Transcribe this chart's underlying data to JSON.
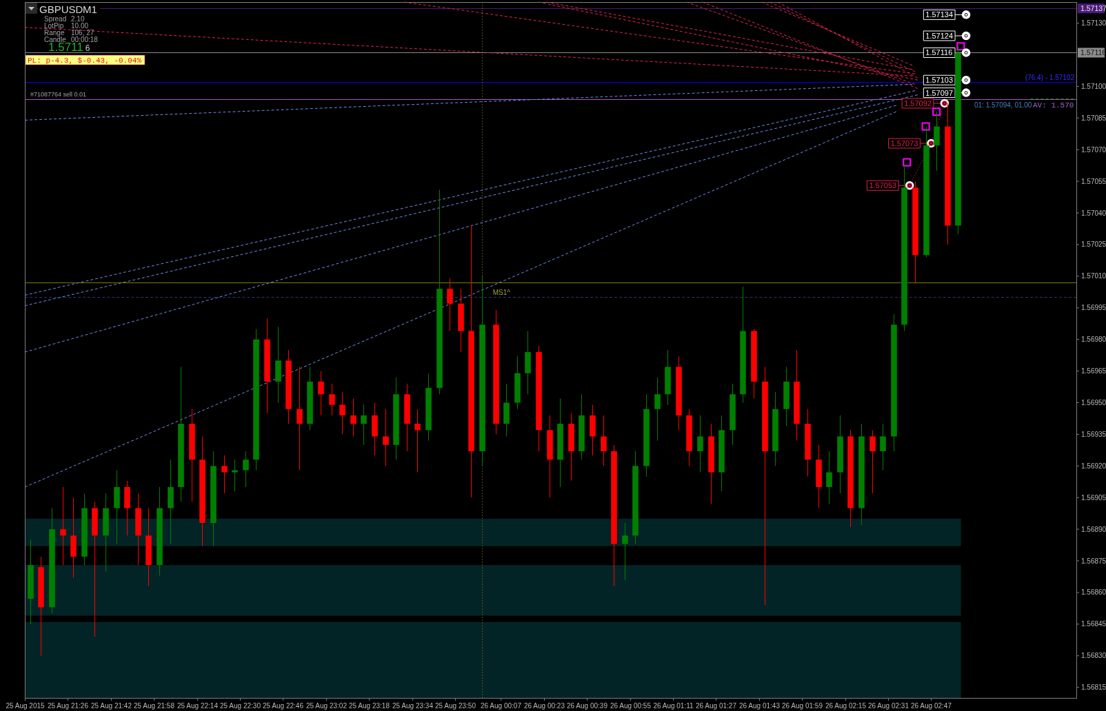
{
  "chart_data": {
    "type": "candlestick",
    "title": "GBPUSD",
    "subtitle": "M1",
    "x": [
      "2015-08-25T21:12",
      "2015-08-25T21:16",
      "2015-08-25T21:20",
      "2015-08-25T21:24",
      "2015-08-25T21:28",
      "2015-08-25T21:32",
      "2015-08-25T21:36",
      "2015-08-25T21:40",
      "2015-08-25T21:44",
      "2015-08-25T21:48",
      "2015-08-25T21:52",
      "2015-08-25T21:56",
      "2015-08-25T22:00",
      "2015-08-25T22:04",
      "2015-08-25T22:08",
      "2015-08-25T22:12",
      "2015-08-25T22:16",
      "2015-08-25T22:20",
      "2015-08-25T22:24",
      "2015-08-25T22:28",
      "2015-08-25T22:32",
      "2015-08-25T22:36",
      "2015-08-25T22:40",
      "2015-08-25T22:44",
      "2015-08-25T22:48",
      "2015-08-25T22:52",
      "2015-08-25T22:56",
      "2015-08-25T23:00",
      "2015-08-25T23:04",
      "2015-08-25T23:08",
      "2015-08-25T23:12",
      "2015-08-25T23:16",
      "2015-08-25T23:20",
      "2015-08-25T23:24",
      "2015-08-25T23:28",
      "2015-08-25T23:32",
      "2015-08-25T23:36",
      "2015-08-25T23:40",
      "2015-08-25T23:44",
      "2015-08-25T23:48",
      "2015-08-25T23:52",
      "2015-08-25T23:56",
      "2015-08-26T00:00",
      "2015-08-26T00:05",
      "2015-08-26T00:09",
      "2015-08-26T00:13",
      "2015-08-26T00:17",
      "2015-08-26T00:21",
      "2015-08-26T00:25",
      "2015-08-26T00:29",
      "2015-08-26T00:33",
      "2015-08-26T00:37",
      "2015-08-26T00:41",
      "2015-08-26T00:45",
      "2015-08-26T00:49",
      "2015-08-26T00:53",
      "2015-08-26T00:57",
      "2015-08-26T01:01",
      "2015-08-26T01:05",
      "2015-08-26T01:09",
      "2015-08-26T01:13",
      "2015-08-26T01:17",
      "2015-08-26T01:21",
      "2015-08-26T01:25",
      "2015-08-26T01:29",
      "2015-08-26T01:33",
      "2015-08-26T01:37",
      "2015-08-26T01:41",
      "2015-08-26T01:45",
      "2015-08-26T01:49",
      "2015-08-26T01:53",
      "2015-08-26T01:57",
      "2015-08-26T02:01",
      "2015-08-26T02:05",
      "2015-08-26T02:09",
      "2015-08-26T02:13",
      "2015-08-26T02:17",
      "2015-08-26T02:21",
      "2015-08-26T02:25",
      "2015-08-26T02:29",
      "2015-08-26T02:33",
      "2015-08-26T02:37",
      "2015-08-26T02:41",
      "2015-08-26T02:45",
      "2015-08-26T02:49",
      "2015-08-26T02:53",
      "2015-08-26T02:57"
    ],
    "ohlc": [
      [
        1.56857,
        1.56885,
        1.56845,
        1.56873
      ],
      [
        1.56872,
        1.56877,
        1.5683,
        1.56853
      ],
      [
        1.56853,
        1.569,
        1.5685,
        1.5689
      ],
      [
        1.5689,
        1.5691,
        1.56873,
        1.56887
      ],
      [
        1.56887,
        1.56905,
        1.56867,
        1.56877
      ],
      [
        1.56877,
        1.56907,
        1.56873,
        1.569
      ],
      [
        1.569,
        1.56903,
        1.56839,
        1.56887
      ],
      [
        1.56887,
        1.56907,
        1.5687,
        1.569
      ],
      [
        1.569,
        1.56918,
        1.56883,
        1.5691
      ],
      [
        1.5691,
        1.56913,
        1.56887,
        1.569
      ],
      [
        1.569,
        1.56907,
        1.56873,
        1.56887
      ],
      [
        1.56887,
        1.569,
        1.56863,
        1.56873
      ],
      [
        1.56873,
        1.5691,
        1.56868,
        1.569
      ],
      [
        1.569,
        1.56923,
        1.56883,
        1.5691
      ],
      [
        1.5691,
        1.56967,
        1.56903,
        1.5694
      ],
      [
        1.5694,
        1.56947,
        1.56903,
        1.56923
      ],
      [
        1.56923,
        1.56934,
        1.56882,
        1.56893
      ],
      [
        1.56893,
        1.56927,
        1.56882,
        1.5692
      ],
      [
        1.5692,
        1.56925,
        1.56907,
        1.56917
      ],
      [
        1.56917,
        1.56923,
        1.56908,
        1.56918
      ],
      [
        1.56918,
        1.56927,
        1.5691,
        1.56923
      ],
      [
        1.56923,
        1.56985,
        1.56918,
        1.5698
      ],
      [
        1.5698,
        1.5699,
        1.56945,
        1.5696
      ],
      [
        1.5696,
        1.56986,
        1.5695,
        1.5697
      ],
      [
        1.5697,
        1.56975,
        1.5694,
        1.56947
      ],
      [
        1.56947,
        1.56967,
        1.56918,
        1.5694
      ],
      [
        1.5694,
        1.56967,
        1.56937,
        1.5696
      ],
      [
        1.5696,
        1.56965,
        1.56944,
        1.56954
      ],
      [
        1.56954,
        1.56959,
        1.56944,
        1.56949
      ],
      [
        1.56949,
        1.56955,
        1.56935,
        1.56944
      ],
      [
        1.56944,
        1.56952,
        1.56934,
        1.5694
      ],
      [
        1.5694,
        1.56949,
        1.5693,
        1.56944
      ],
      [
        1.56944,
        1.5695,
        1.56925,
        1.56934
      ],
      [
        1.56934,
        1.56947,
        1.5692,
        1.5693
      ],
      [
        1.5693,
        1.56962,
        1.56923,
        1.56954
      ],
      [
        1.56954,
        1.56959,
        1.56927,
        1.5694
      ],
      [
        1.5694,
        1.56947,
        1.56917,
        1.56937
      ],
      [
        1.56937,
        1.56964,
        1.56932,
        1.56957
      ],
      [
        1.56957,
        1.57051,
        1.56954,
        1.57004
      ],
      [
        1.57004,
        1.57009,
        1.56984,
        1.56997
      ],
      [
        1.56997,
        1.57004,
        1.56974,
        1.56984
      ],
      [
        1.56984,
        1.57034,
        1.56905,
        1.56927
      ],
      [
        1.56927,
        1.5701,
        1.5692,
        1.56987
      ],
      [
        1.56987,
        1.56994,
        1.56935,
        1.5694
      ],
      [
        1.5694,
        1.56959,
        1.56934,
        1.5695
      ],
      [
        1.5695,
        1.56972,
        1.56947,
        1.56964
      ],
      [
        1.56964,
        1.56984,
        1.56954,
        1.56974
      ],
      [
        1.56974,
        1.56977,
        1.56927,
        1.56937
      ],
      [
        1.56937,
        1.56944,
        1.56905,
        1.56923
      ],
      [
        1.56923,
        1.56952,
        1.5691,
        1.5694
      ],
      [
        1.5694,
        1.56945,
        1.56913,
        1.56927
      ],
      [
        1.56927,
        1.56954,
        1.56923,
        1.56944
      ],
      [
        1.56944,
        1.56949,
        1.56925,
        1.56934
      ],
      [
        1.56934,
        1.56944,
        1.5692,
        1.56927
      ],
      [
        1.56927,
        1.5693,
        1.56863,
        1.56883
      ],
      [
        1.56883,
        1.56893,
        1.56866,
        1.56887
      ],
      [
        1.56887,
        1.56927,
        1.56883,
        1.5692
      ],
      [
        1.5692,
        1.56954,
        1.56915,
        1.56947
      ],
      [
        1.56947,
        1.56962,
        1.56932,
        1.56954
      ],
      [
        1.56954,
        1.56975,
        1.56949,
        1.56967
      ],
      [
        1.56967,
        1.56972,
        1.56937,
        1.56944
      ],
      [
        1.56944,
        1.56947,
        1.5692,
        1.56927
      ],
      [
        1.56927,
        1.56944,
        1.56917,
        1.56934
      ],
      [
        1.56934,
        1.5694,
        1.56902,
        1.56917
      ],
      [
        1.56917,
        1.56944,
        1.56908,
        1.56937
      ],
      [
        1.56937,
        1.56959,
        1.5693,
        1.56954
      ],
      [
        1.56954,
        1.57005,
        1.5695,
        1.56984
      ],
      [
        1.56984,
        1.56985,
        1.56952,
        1.5696
      ],
      [
        1.5696,
        1.56967,
        1.56854,
        1.56927
      ],
      [
        1.56927,
        1.56955,
        1.5692,
        1.56947
      ],
      [
        1.56947,
        1.56967,
        1.56939,
        1.5696
      ],
      [
        1.5696,
        1.56975,
        1.56932,
        1.5694
      ],
      [
        1.5694,
        1.56947,
        1.56915,
        1.56923
      ],
      [
        1.56923,
        1.5693,
        1.569,
        1.5691
      ],
      [
        1.5691,
        1.56927,
        1.56902,
        1.56917
      ],
      [
        1.56917,
        1.56944,
        1.56907,
        1.56934
      ],
      [
        1.56934,
        1.56937,
        1.56891,
        1.569
      ],
      [
        1.569,
        1.5694,
        1.56892,
        1.56934
      ],
      [
        1.56934,
        1.56937,
        1.56907,
        1.56927
      ],
      [
        1.56927,
        1.5694,
        1.56918,
        1.56934
      ],
      [
        1.56934,
        1.56992,
        1.56927,
        1.56987
      ],
      [
        1.56987,
        1.57063,
        1.56984,
        1.57052
      ],
      [
        1.57052,
        1.57055,
        1.57007,
        1.5702
      ],
      [
        1.5702,
        1.57081,
        1.57019,
        1.57072
      ],
      [
        1.57072,
        1.57088,
        1.5706,
        1.57081
      ],
      [
        1.57081,
        1.57092,
        1.57025,
        1.57034
      ],
      [
        1.57034,
        1.57119,
        1.5703,
        1.57116
      ]
    ],
    "colors": [
      "#008000",
      "#ff0000",
      "#008000",
      "#ff0000",
      "#ff0000",
      "#008000",
      "#ff0000",
      "#008000",
      "#008000",
      "#ff0000",
      "#ff0000",
      "#ff0000",
      "#008000",
      "#008000",
      "#008000",
      "#ff0000",
      "#ff0000",
      "#008000",
      "#ff0000",
      "#008000",
      "#008000",
      "#008000",
      "#ff0000",
      "#008000",
      "#ff0000",
      "#ff0000",
      "#008000",
      "#ff0000",
      "#ff0000",
      "#ff0000",
      "#ff0000",
      "#008000",
      "#ff0000",
      "#ff0000",
      "#008000",
      "#ff0000",
      "#ff0000",
      "#008000",
      "#008000",
      "#ff0000",
      "#ff0000",
      "#ff0000",
      "#008000",
      "#ff0000",
      "#008000",
      "#008000",
      "#008000",
      "#ff0000",
      "#ff0000",
      "#008000",
      "#ff0000",
      "#008000",
      "#ff0000",
      "#ff0000",
      "#ff0000",
      "#008000",
      "#008000",
      "#008000",
      "#008000",
      "#008000",
      "#ff0000",
      "#ff0000",
      "#008000",
      "#ff0000",
      "#008000",
      "#008000",
      "#008000",
      "#ff0000",
      "#ff0000",
      "#008000",
      "#008000",
      "#ff0000",
      "#ff0000",
      "#ff0000",
      "#008000",
      "#008000",
      "#ff0000",
      "#008000",
      "#ff0000",
      "#008000",
      "#008000",
      "#008000",
      "#ff0000",
      "#008000",
      "#008000",
      "#ff0000",
      "#008000"
    ],
    "xlim": [
      "2015-08-25T21:10",
      "2015-08-26T03:41"
    ],
    "ylim": [
      1.5681,
      1.5714
    ],
    "xticks": [
      {
        "value": "2015-08-25T21:10",
        "label": "25 Aug 2015"
      },
      {
        "value": "2015-08-25T21:26",
        "label": "25 Aug 21:26"
      },
      {
        "value": "2015-08-25T21:42",
        "label": "25 Aug 21:42"
      },
      {
        "value": "2015-08-25T21:58",
        "label": "25 Aug 21:58"
      },
      {
        "value": "2015-08-25T22:14",
        "label": "25 Aug 22:14"
      },
      {
        "value": "2015-08-25T22:30",
        "label": "25 Aug 22:30"
      },
      {
        "value": "2015-08-25T22:46",
        "label": "25 Aug 22:46"
      },
      {
        "value": "2015-08-25T23:02",
        "label": "25 Aug 23:02"
      },
      {
        "value": "2015-08-25T23:18",
        "label": "25 Aug 23:18"
      },
      {
        "value": "2015-08-25T23:34",
        "label": "25 Aug 23:34"
      },
      {
        "value": "2015-08-25T23:50",
        "label": "25 Aug 23:50"
      },
      {
        "value": "2015-08-26T00:07",
        "label": "26 Aug 00:07"
      },
      {
        "value": "2015-08-26T00:23",
        "label": "26 Aug 00:23"
      },
      {
        "value": "2015-08-26T00:39",
        "label": "26 Aug 00:39"
      },
      {
        "value": "2015-08-26T00:55",
        "label": "26 Aug 00:55"
      },
      {
        "value": "2015-08-26T01:11",
        "label": "26 Aug 01:11"
      },
      {
        "value": "2015-08-26T01:27",
        "label": "26 Aug 01:27"
      },
      {
        "value": "2015-08-26T01:43",
        "label": "26 Aug 01:43"
      },
      {
        "value": "2015-08-26T01:59",
        "label": "26 Aug 01:59"
      },
      {
        "value": "2015-08-26T02:15",
        "label": "26 Aug 02:15"
      },
      {
        "value": "2015-08-26T02:31",
        "label": "26 Aug 02:31"
      },
      {
        "value": "2015-08-26T02:47",
        "label": "26 Aug 02:47"
      }
    ],
    "yticks": [
      1.56815,
      {
        "value": 1.5683,
        "label": "1.56830"
      },
      1.56845,
      {
        "value": 1.5686,
        "label": "1.56860"
      },
      1.56875,
      {
        "value": 1.5689,
        "label": "1.56890"
      },
      1.56905,
      {
        "value": 1.5692,
        "label": "1.56920"
      },
      1.56935,
      {
        "value": 1.5695,
        "label": "1.56950"
      },
      1.56965,
      {
        "value": 1.5698,
        "label": "1.56980"
      },
      1.56995,
      {
        "value": 1.5701,
        "label": "1.57010"
      },
      1.57025,
      {
        "value": 1.5704,
        "label": "1.57040"
      },
      1.57055,
      {
        "value": 1.5707,
        "label": "1.57070"
      },
      1.57085,
      {
        "value": 1.571,
        "label": "1.57100"
      },
      {
        "value": 1.5713,
        "label": "1.57130"
      }
    ],
    "series": [
      {
        "type": "line",
        "x": [
          "2015-08-25T21:10",
          "2015-08-26T02:40"
        ],
        "values": [
          1.57128,
          1.57105
        ],
        "color": "#e8254f",
        "line_style": "dashed"
      },
      {
        "type": "line",
        "x": [
          "2015-08-25T23:31",
          "2015-08-26T02:41"
        ],
        "values": [
          1.5714,
          1.57106
        ],
        "color": "#e8254f",
        "line_style": "dashed"
      },
      {
        "type": "line",
        "x": [
          "2015-08-26T00:21",
          "2015-08-26T02:42"
        ],
        "values": [
          1.5714,
          1.57103
        ],
        "color": "#e8254f",
        "line_style": "dashed"
      },
      {
        "type": "line",
        "x": [
          "2015-08-26T00:24",
          "2015-08-26T02:40"
        ],
        "values": [
          1.5714,
          1.57108
        ],
        "color": "#e8254f",
        "line_style": "dashed"
      },
      {
        "type": "line",
        "x": [
          "2015-08-26T01:16",
          "2015-08-26T02:41"
        ],
        "values": [
          1.5714,
          1.57101
        ],
        "color": "#e8254f",
        "line_style": "dashed"
      },
      {
        "type": "line",
        "x": [
          "2015-08-26T01:22",
          "2015-08-26T02:42"
        ],
        "values": [
          1.5714,
          1.57099
        ],
        "color": "#e8254f",
        "line_style": "dashed"
      },
      {
        "type": "line",
        "x": [
          "2015-08-26T01:44",
          "2015-08-26T02:40"
        ],
        "values": [
          1.5714,
          1.5711
        ],
        "color": "#e8254f",
        "line_style": "dashed"
      },
      {
        "type": "line",
        "x": [
          "2015-08-26T01:47",
          "2015-08-26T02:41"
        ],
        "values": [
          1.5714,
          1.57107
        ],
        "color": "#e8254f",
        "line_style": "dashed"
      },
      {
        "type": "line",
        "x": [
          "2015-08-26T01:50",
          "2015-08-26T02:42"
        ],
        "values": [
          1.5714,
          1.57104
        ],
        "color": "#e8254f",
        "line_style": "dashed"
      },
      {
        "type": "line",
        "x": [
          "2015-08-25T21:10",
          "2015-08-26T02:40"
        ],
        "values": [
          1.57084,
          1.57101
        ],
        "color": "#6a8fe8",
        "line_style": "dashed"
      },
      {
        "type": "line",
        "x": [
          "2015-08-25T21:10",
          "2015-08-26T02:41"
        ],
        "values": [
          1.57001,
          1.57098
        ],
        "color": "#6a8fe8",
        "line_style": "dashed"
      },
      {
        "type": "line",
        "x": [
          "2015-08-25T21:10",
          "2015-08-26T02:42"
        ],
        "values": [
          1.56996,
          1.57096
        ],
        "color": "#6a8fe8",
        "line_style": "dashed"
      },
      {
        "type": "line",
        "x": [
          "2015-08-25T21:10",
          "2015-08-26T02:34"
        ],
        "values": [
          1.56974,
          1.57091
        ],
        "color": "#6a8fe8",
        "line_style": "dashed"
      },
      {
        "type": "line",
        "x": [
          "2015-08-25T21:10",
          "2015-08-26T02:34"
        ],
        "values": [
          1.5691,
          1.57088
        ],
        "color": "#6a8fe8",
        "line_style": "dashed"
      },
      {
        "type": "line",
        "x": [
          "2015-08-26T02:39",
          "2015-08-26T02:47",
          "2015-08-26T02:52"
        ],
        "values": [
          1.57053,
          1.57073,
          1.57092
        ],
        "color": "#dc143c",
        "line_style": "dotted",
        "marker": "circle"
      },
      {
        "type": "line",
        "x": [
          "2015-08-26T03:24",
          "2015-08-26T03:40"
        ],
        "values": [
          1.57094,
          1.57094
        ],
        "color": "#00c000",
        "line_style": "dashed"
      },
      {
        "type": "scatter",
        "x": [
          "2015-08-26T02:38",
          "2015-08-26T02:45",
          "2015-08-26T02:49",
          "2015-08-26T02:58"
        ],
        "values": [
          1.57064,
          1.57081,
          1.57088,
          1.57119
        ],
        "color": "#ff00ff",
        "marker": "square"
      },
      {
        "type": "scatter",
        "x": [
          "2015-08-26T03:00",
          "2015-08-26T03:00",
          "2015-08-26T03:00",
          "2015-08-26T03:00",
          "2015-08-26T03:00"
        ],
        "values": [
          1.57134,
          1.57124,
          1.57116,
          1.57103,
          1.57097
        ],
        "color": "#ffffff",
        "marker": "circle"
      }
    ],
    "ref_lines": [
      {
        "axis": "y",
        "value": 1.57137,
        "label": "1.57137",
        "color": "#4b1a7a"
      },
      {
        "axis": "y",
        "value": 1.57116,
        "label": "1.57116",
        "color": "#8c8c8c"
      },
      {
        "axis": "y",
        "value": 1.57102,
        "color": "#0000ff"
      },
      {
        "axis": "y",
        "value": 1.57094,
        "color": "#b050c8"
      },
      {
        "axis": "y",
        "value": 1.57007,
        "color": "#7a7a10"
      },
      {
        "axis": "y",
        "value": 1.57,
        "color": "#303080",
        "line_style": "dashed"
      },
      {
        "axis": "x",
        "value": "2015-08-26T00:00",
        "color": "#6b6b10",
        "line_style": "dotted"
      }
    ],
    "bands": [
      {
        "axis": "y",
        "from": 1.5681,
        "to": 1.56846,
        "color": "#022426"
      },
      {
        "axis": "y",
        "from": 1.56849,
        "to": 1.56873,
        "color": "#022426"
      },
      {
        "axis": "y",
        "from": 1.56882,
        "to": 1.56895,
        "color": "#022426"
      }
    ],
    "annotations": [
      "Spread",
      "2.10",
      "LotPip",
      "10.00",
      "Range",
      "106, 27",
      "Candle",
      "00:00:18",
      "1.57116",
      "PL: p-4.3, $-0.43, -0.04%",
      "#71087764 sell 0.01",
      "(76.4) - 1.57102",
      "01: 1.57094, 01.00",
      "AV: 1.570",
      {
        "text": "MS1^",
        "x": "2015-08-26T00:04",
        "y": 1.57001
      },
      {
        "text": "1.57134",
        "x": "2015-08-26T03:00",
        "y": 1.57134
      },
      {
        "text": "1.57124",
        "x": "2015-08-26T03:00",
        "y": 1.57124
      },
      {
        "text": "1.57116",
        "x": "2015-08-26T03:00",
        "y": 1.57116
      },
      {
        "text": "1.57103",
        "x": "2015-08-26T03:00",
        "y": 1.57103
      },
      {
        "text": "1.57097",
        "x": "2015-08-26T03:00",
        "y": 1.57097
      },
      {
        "text": "1.57092",
        "x": "2015-08-26T02:52",
        "y": 1.57092
      },
      {
        "text": "1.57073",
        "x": "2015-08-26T02:47",
        "y": 1.57073
      },
      {
        "text": "1.57053",
        "x": "2015-08-26T02:39",
        "y": 1.57053
      }
    ]
  }
}
